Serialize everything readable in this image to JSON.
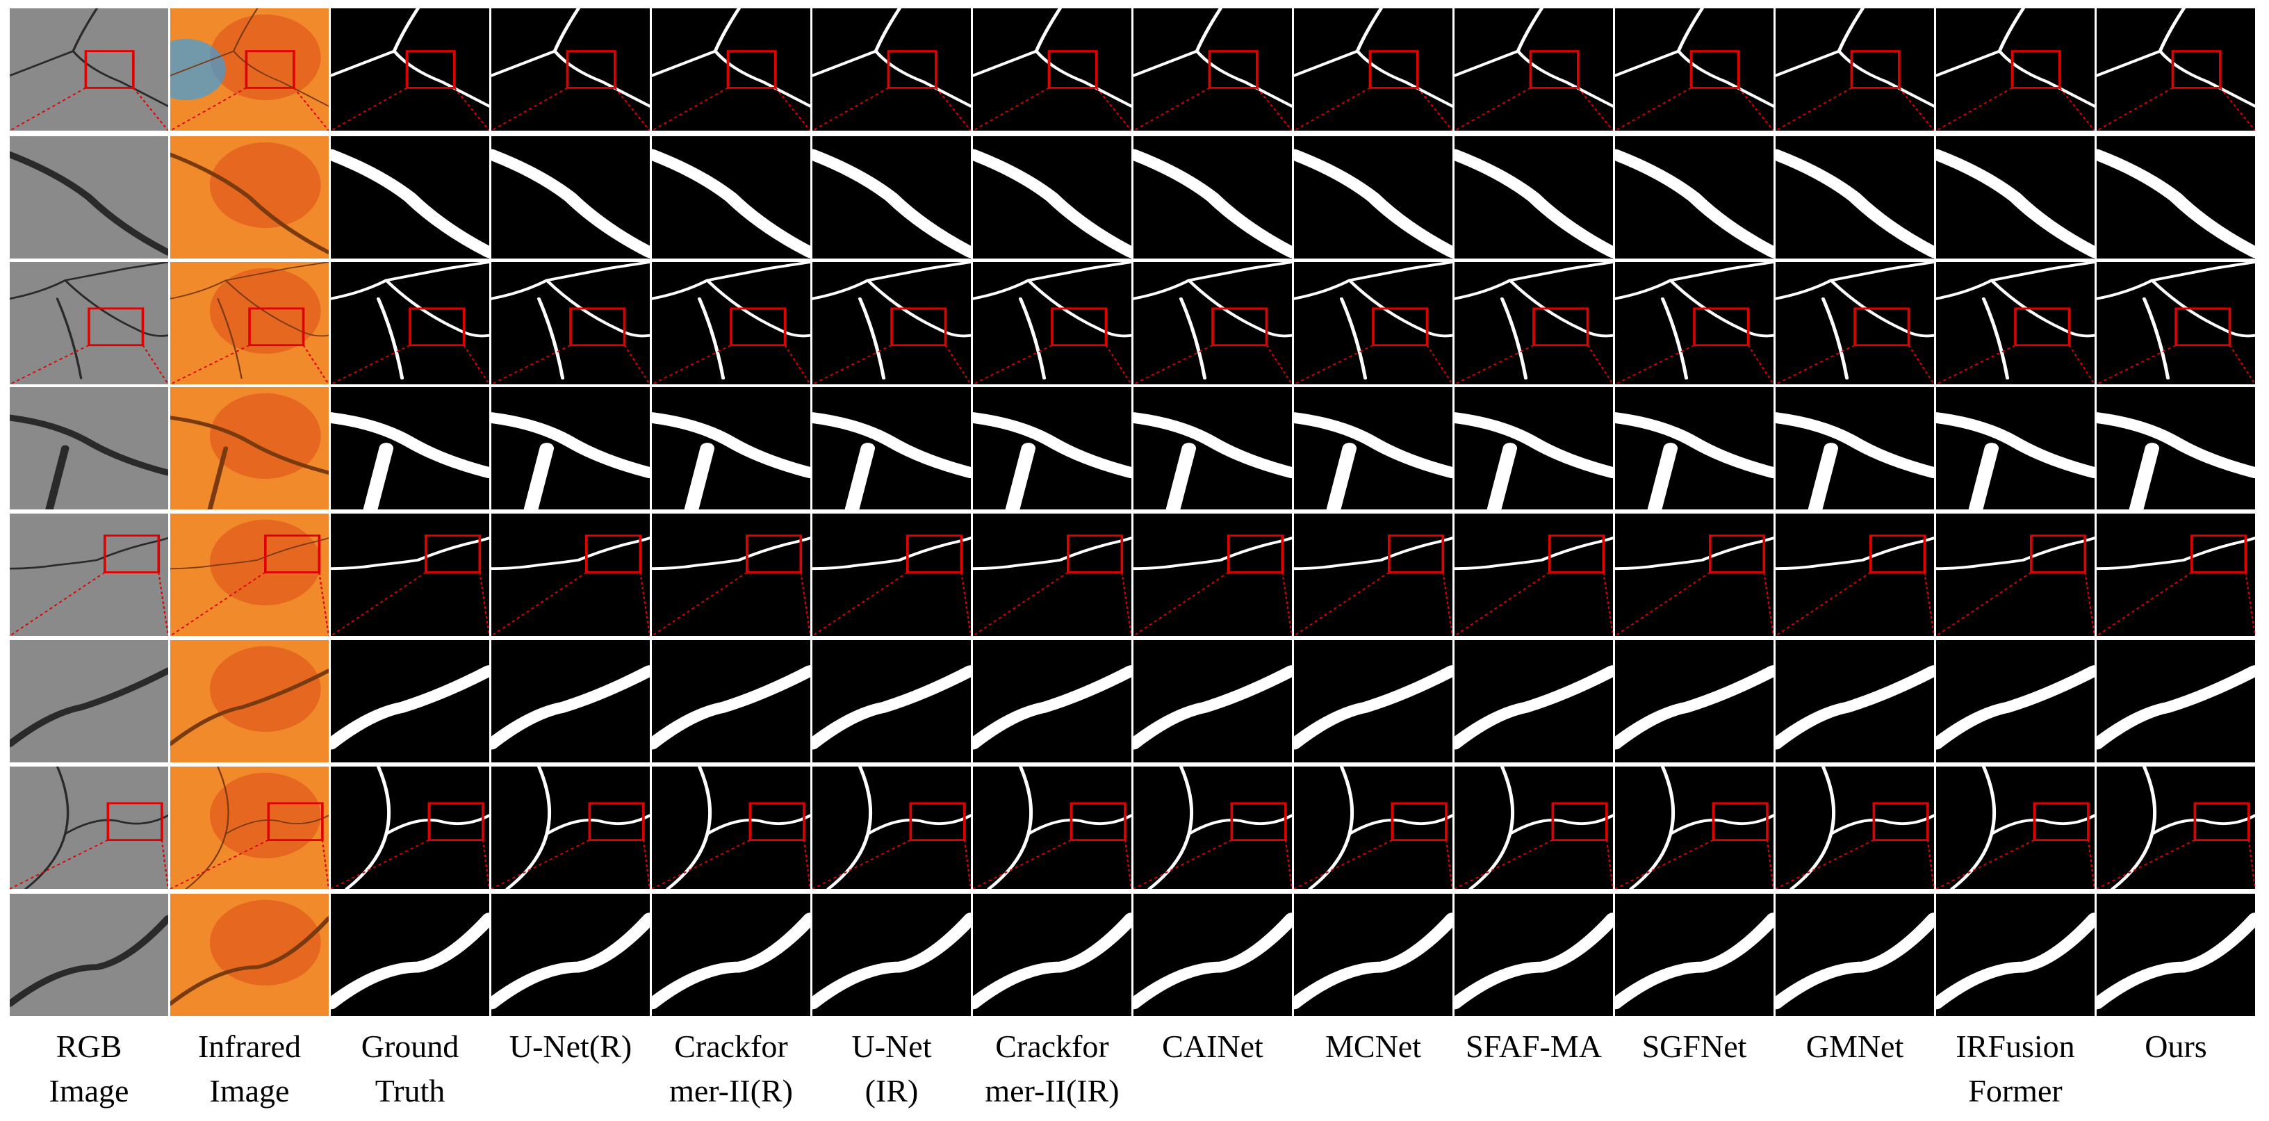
{
  "figure": {
    "columns": [
      {
        "label": "RGB\nImage",
        "kind": "rgb"
      },
      {
        "label": "Infrared\nImage",
        "kind": "ir"
      },
      {
        "label": "Ground\nTruth",
        "kind": "mask"
      },
      {
        "label": "U-Net(R)",
        "kind": "mask"
      },
      {
        "label": "Crackfor\nmer-II(R)",
        "kind": "mask"
      },
      {
        "label": "U-Net\n(IR)",
        "kind": "mask"
      },
      {
        "label": "Crackfor\nmer-II(IR)",
        "kind": "mask"
      },
      {
        "label": "CAINet",
        "kind": "mask"
      },
      {
        "label": "MCNet",
        "kind": "mask"
      },
      {
        "label": "SFAF-MA",
        "kind": "mask"
      },
      {
        "label": "SGFNet",
        "kind": "mask"
      },
      {
        "label": "GMNet",
        "kind": "mask"
      },
      {
        "label": "IRFusion\nFormer",
        "kind": "mask"
      },
      {
        "label": "Ours",
        "kind": "mask"
      }
    ],
    "sample_count": 4,
    "row_types": [
      "full",
      "zoom"
    ],
    "colors": {
      "zoom_box": "#e00000",
      "mask_background": "#000000",
      "crack": "#ffffff",
      "rgb_base": "#8a8a8a",
      "ir_warm": "#f08a2a",
      "ir_hot": "#e0501a",
      "ir_cool": "#3aa0e0"
    }
  }
}
